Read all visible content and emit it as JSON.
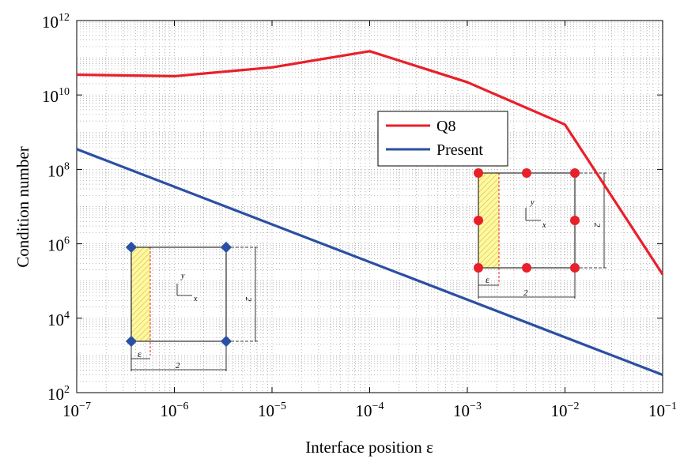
{
  "chart_data": {
    "type": "line",
    "xlabel": "Interface position ε",
    "ylabel": "Condition number",
    "xscale": "log",
    "yscale": "log",
    "xlim": [
      1e-07,
      0.1
    ],
    "ylim": [
      100.0,
      1000000000000.0
    ],
    "grid": true,
    "legend_position": "top-right",
    "x_ticks": [
      {
        "value": 1e-07,
        "base": "10",
        "exp": "−7"
      },
      {
        "value": 1e-06,
        "base": "10",
        "exp": "−6"
      },
      {
        "value": 1e-05,
        "base": "10",
        "exp": "−5"
      },
      {
        "value": 0.0001,
        "base": "10",
        "exp": "−4"
      },
      {
        "value": 0.001,
        "base": "10",
        "exp": "−3"
      },
      {
        "value": 0.01,
        "base": "10",
        "exp": "−2"
      },
      {
        "value": 0.1,
        "base": "10",
        "exp": "−1"
      }
    ],
    "y_ticks": [
      {
        "value": 100.0,
        "base": "10",
        "exp": "2"
      },
      {
        "value": 10000.0,
        "base": "10",
        "exp": "4"
      },
      {
        "value": 1000000.0,
        "base": "10",
        "exp": "6"
      },
      {
        "value": 100000000.0,
        "base": "10",
        "exp": "8"
      },
      {
        "value": 10000000000.0,
        "base": "10",
        "exp": "10"
      },
      {
        "value": 1000000000000.0,
        "base": "10",
        "exp": "12"
      }
    ],
    "series": [
      {
        "name": "Q8",
        "color": "#e8202a",
        "x": [
          1e-07,
          1e-06,
          1e-05,
          0.0001,
          0.001,
          0.01,
          0.1
        ],
        "y": [
          35000000000.0,
          32000000000.0,
          55000000000.0,
          150000000000.0,
          22000000000.0,
          1600000000.0,
          150000.0
        ]
      },
      {
        "name": "Present",
        "color": "#2b4fa3",
        "x": [
          1e-07,
          0.1
        ],
        "y": [
          350000000.0,
          300
        ]
      }
    ],
    "insets": {
      "left": {
        "marker_color": "#2b4fa3",
        "epsilon_label": "ε",
        "width_label": "2",
        "height_label": "2",
        "y_axis_label": "y",
        "x_axis_label": "x"
      },
      "right": {
        "marker_color": "#e8202a",
        "epsilon_label": "ε",
        "width_label": "2",
        "height_label": "2",
        "y_axis_label": "y",
        "x_axis_label": "x"
      }
    }
  }
}
